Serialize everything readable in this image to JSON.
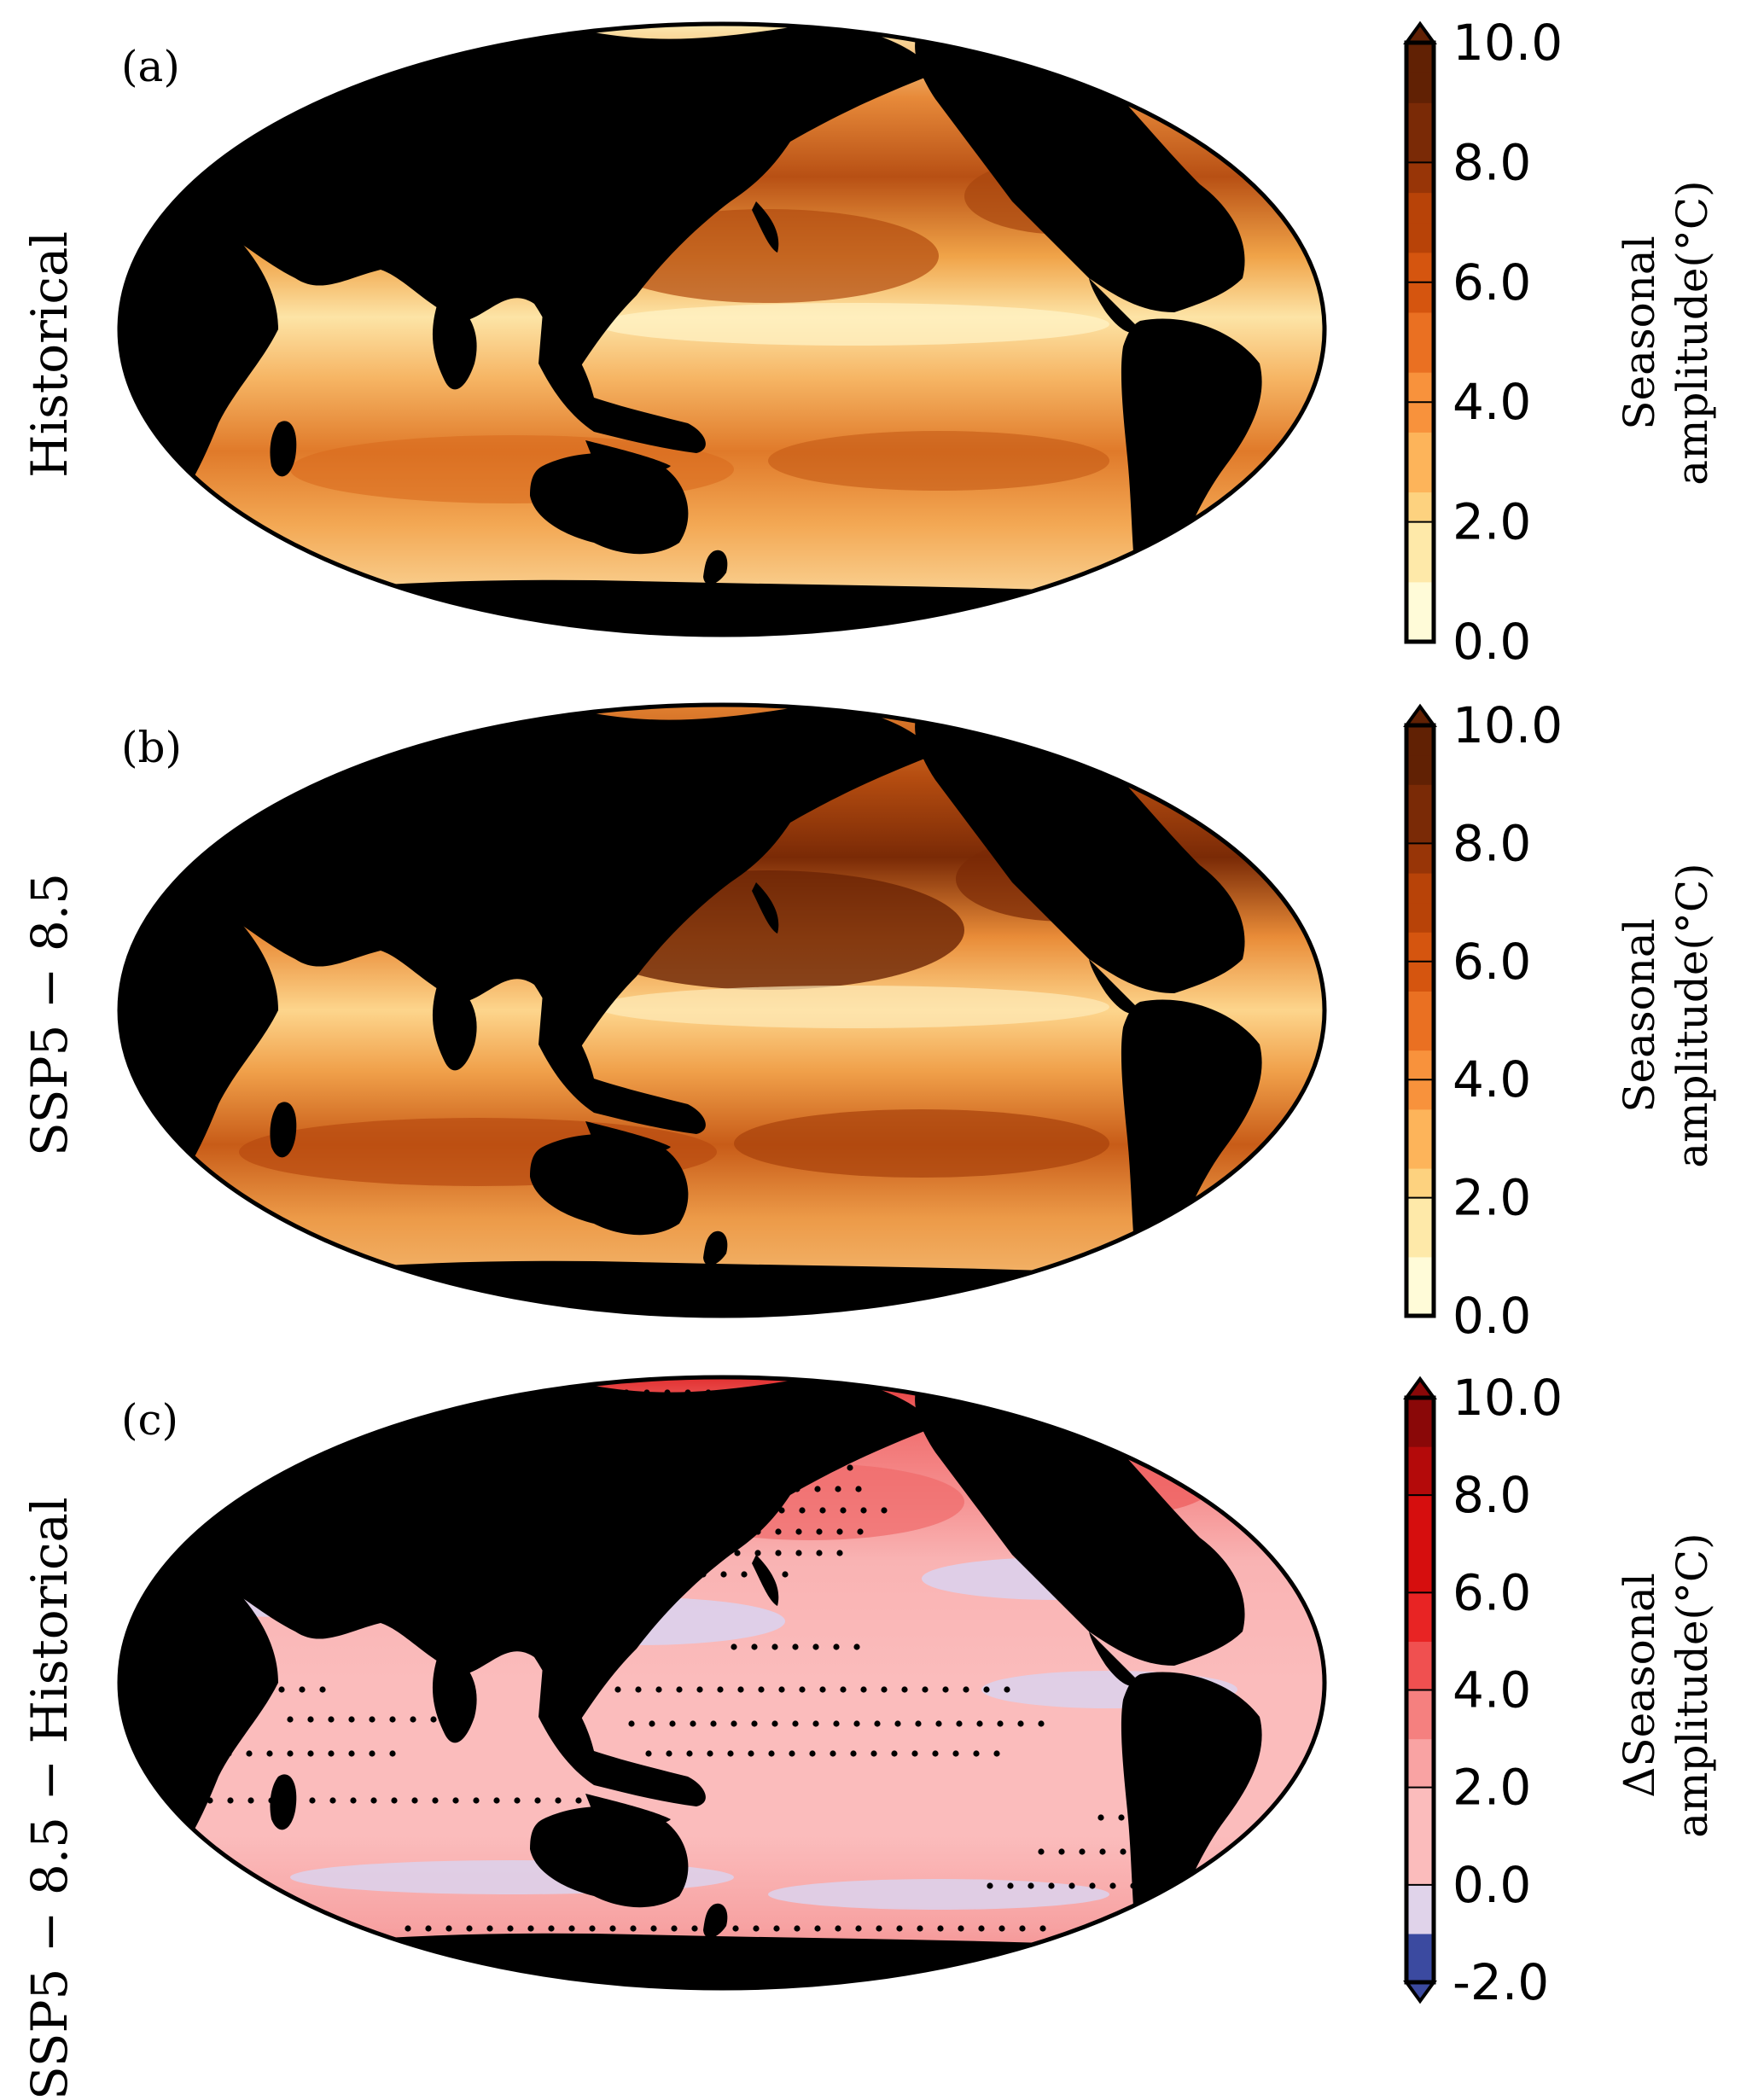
{
  "panels": [
    {
      "id": "a",
      "tag": "(a)",
      "row_label": "Historical",
      "colorbar": {
        "ticks": [
          "10.0",
          "8.0",
          "6.0",
          "4.0",
          "2.0",
          "0.0"
        ],
        "label_line1": "Seasonal",
        "label_line2": "amplitude(°C)",
        "palette": "YlOrBr",
        "extend": "max",
        "min": 0,
        "max": 10
      }
    },
    {
      "id": "b",
      "tag": "(b)",
      "row_label": "SSP5 − 8.5",
      "colorbar": {
        "ticks": [
          "10.0",
          "8.0",
          "6.0",
          "4.0",
          "2.0",
          "0.0"
        ],
        "label_line1": "Seasonal",
        "label_line2": "amplitude(°C)",
        "palette": "YlOrBr",
        "extend": "max",
        "min": 0,
        "max": 10
      }
    },
    {
      "id": "c",
      "tag": "(c)",
      "row_label": "SSP5 − 8.5  −  Historical",
      "colorbar": {
        "ticks": [
          "10.0",
          "8.0",
          "6.0",
          "4.0",
          "2.0",
          "0.0",
          "-2.0"
        ],
        "label_line1": "ΔSeasonal",
        "label_line2": "amplitude(°C)",
        "palette": "diverging-red-blue",
        "extend": "both",
        "min": -2,
        "max": 10
      }
    }
  ],
  "colors": {
    "land": "#000000",
    "ylorbr": [
      "#fffbd8",
      "#fee9a9",
      "#fdd27f",
      "#fdb45a",
      "#f8923c",
      "#ea7022",
      "#d5550f",
      "#b84308",
      "#983507",
      "#7a2a06",
      "#612104"
    ],
    "diverging": [
      "#3b4aa0",
      "#e0d3ea",
      "#fbbcbc",
      "#f9a3a3",
      "#f5807f",
      "#f05050",
      "#e82424",
      "#d60e0e",
      "#b40a0a",
      "#8a0808"
    ],
    "mask_purple": "#ddd0ea",
    "stipple": "#000000"
  }
}
